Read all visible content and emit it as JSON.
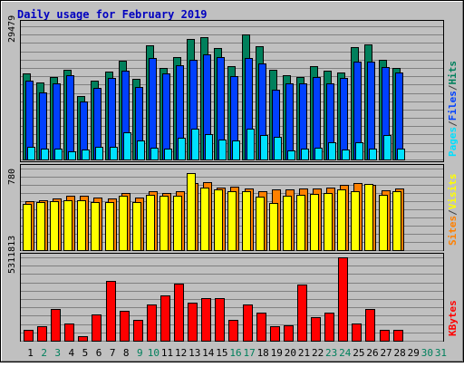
{
  "title": "Daily usage for February 2019",
  "colors": {
    "background": "#c0c0c0",
    "title": "#0000c0",
    "pages": "#00e0ff",
    "files": "#0040ff",
    "hits": "#00805c",
    "visits": "#ffff00",
    "sites": "#ff8000",
    "kbytes": "#ff0000",
    "weekend_label": "#00805c",
    "separator": "#404040"
  },
  "chart_data": [
    {
      "type": "bar",
      "name": "hits-files-pages",
      "max_label": "29479",
      "ylim": [
        0,
        29479
      ],
      "grid": true,
      "legend": [
        {
          "text": "Pages",
          "color": "#00e0ff"
        },
        {
          "text": "/",
          "color": "#404040"
        },
        {
          "text": "Files",
          "color": "#0040ff"
        },
        {
          "text": "/",
          "color": "#404040"
        },
        {
          "text": "Hits",
          "color": "#00805c"
        }
      ],
      "categories": [
        "1",
        "2",
        "3",
        "4",
        "5",
        "6",
        "7",
        "8",
        "9",
        "10",
        "11",
        "12",
        "13",
        "14",
        "15",
        "16",
        "17",
        "18",
        "19",
        "20",
        "21",
        "22",
        "23",
        "24",
        "25",
        "26",
        "27",
        "28"
      ],
      "series": [
        {
          "name": "Hits",
          "values": [
            19100,
            17000,
            18300,
            19800,
            14000,
            17500,
            19400,
            21800,
            17800,
            25200,
            20300,
            22700,
            26600,
            27000,
            24600,
            20700,
            27700,
            25000,
            19900,
            18700,
            18300,
            20700,
            19700,
            19200,
            24900,
            25400,
            22100,
            20300
          ]
        },
        {
          "name": "Files",
          "values": [
            17500,
            14900,
            16800,
            18600,
            12900,
            15900,
            18000,
            19600,
            16000,
            22400,
            19000,
            20900,
            22100,
            23300,
            22600,
            18400,
            22400,
            21200,
            15400,
            16800,
            16900,
            18300,
            16900,
            18000,
            21700,
            21600,
            20400,
            19300
          ]
        },
        {
          "name": "Pages",
          "values": [
            2900,
            2500,
            2500,
            1900,
            2300,
            2900,
            2900,
            6000,
            4300,
            2600,
            2500,
            4900,
            6800,
            5600,
            4500,
            4200,
            6800,
            5500,
            5000,
            2000,
            2400,
            2600,
            3900,
            2300,
            3900,
            2500,
            5500,
            2400
          ]
        }
      ]
    },
    {
      "type": "bar",
      "name": "visits-sites",
      "max_label": "780",
      "ylim": [
        0,
        780
      ],
      "grid": true,
      "legend": [
        {
          "text": "Sites",
          "color": "#ff8000"
        },
        {
          "text": "/",
          "color": "#404040"
        },
        {
          "text": "Visits",
          "color": "#ffff00"
        }
      ],
      "categories": [
        "1",
        "2",
        "3",
        "4",
        "5",
        "6",
        "7",
        "8",
        "9",
        "10",
        "11",
        "12",
        "13",
        "14",
        "15",
        "16",
        "17",
        "18",
        "19",
        "20",
        "21",
        "22",
        "23",
        "24",
        "25",
        "26",
        "27",
        "28"
      ],
      "series": [
        {
          "name": "Sites",
          "values": [
            470,
            480,
            490,
            520,
            520,
            500,
            490,
            550,
            500,
            560,
            550,
            560,
            640,
            650,
            600,
            610,
            590,
            560,
            580,
            580,
            590,
            590,
            600,
            620,
            640,
            620,
            570,
            590
          ]
        },
        {
          "name": "Visits",
          "values": [
            440,
            460,
            470,
            480,
            480,
            460,
            460,
            520,
            460,
            530,
            520,
            520,
            740,
            600,
            580,
            560,
            560,
            510,
            450,
            520,
            530,
            540,
            550,
            580,
            560,
            630,
            530,
            560
          ]
        }
      ]
    },
    {
      "type": "bar",
      "name": "kbytes",
      "max_label": "5311813",
      "ylim": [
        0,
        5311813
      ],
      "grid": true,
      "legend": [
        {
          "text": "KBytes",
          "color": "#ff0000"
        }
      ],
      "categories": [
        "1",
        "2",
        "3",
        "4",
        "5",
        "6",
        "7",
        "8",
        "9",
        "10",
        "11",
        "12",
        "13",
        "14",
        "15",
        "16",
        "17",
        "18",
        "19",
        "20",
        "21",
        "22",
        "23",
        "24",
        "25",
        "26",
        "27",
        "28"
      ],
      "series": [
        {
          "name": "KBytes",
          "values": [
            700000,
            900000,
            2000000,
            1100000,
            300000,
            1700000,
            3800000,
            1900000,
            1300000,
            2300000,
            2900000,
            3650000,
            2400000,
            2700000,
            2700000,
            1300000,
            2300000,
            1800000,
            900000,
            1000000,
            3600000,
            1500000,
            1800000,
            5311813,
            1100000,
            2000000,
            700000,
            700000
          ]
        }
      ]
    }
  ],
  "x_axis": {
    "labels": [
      "1",
      "2",
      "3",
      "4",
      "5",
      "6",
      "7",
      "8",
      "9",
      "10",
      "11",
      "12",
      "13",
      "14",
      "15",
      "16",
      "17",
      "18",
      "19",
      "20",
      "21",
      "22",
      "23",
      "24",
      "25",
      "26",
      "27",
      "28",
      "29",
      "30",
      "31"
    ],
    "weekend_days": [
      "2",
      "3",
      "9",
      "10",
      "16",
      "17",
      "23",
      "24",
      "30",
      "31"
    ]
  }
}
